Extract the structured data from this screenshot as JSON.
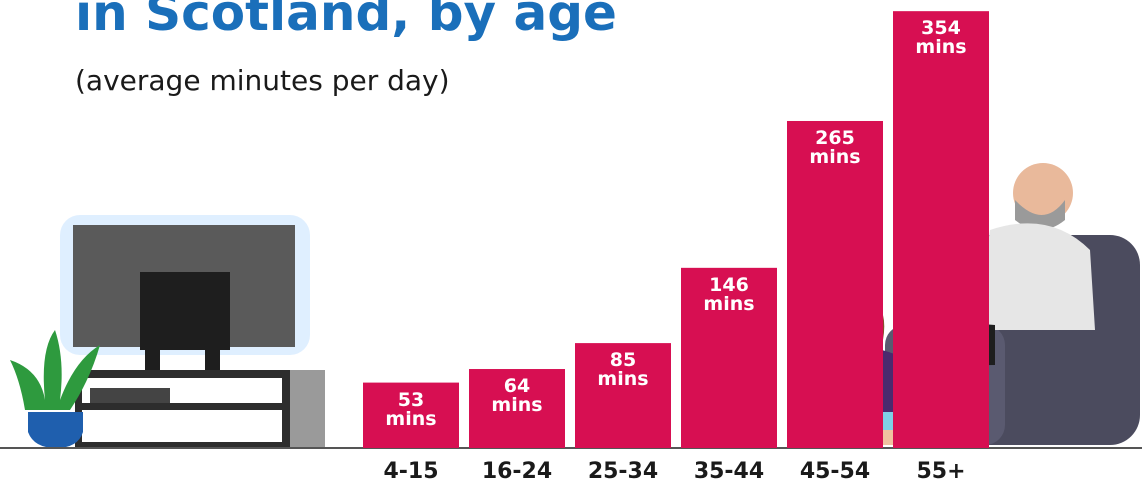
{
  "chart_data": {
    "type": "bar",
    "title": "in Scotland, by age",
    "subtitle": "(average minutes per day)",
    "categories": [
      "4-15",
      "16-24",
      "25-34",
      "35-44",
      "45-54",
      "55+"
    ],
    "values": [
      53,
      64,
      85,
      146,
      265,
      354
    ],
    "value_labels": [
      "53 mins",
      "64 mins",
      "85 mins",
      "146 mins",
      "265 mins",
      "354 mins"
    ],
    "color": "#d70f52"
  }
}
